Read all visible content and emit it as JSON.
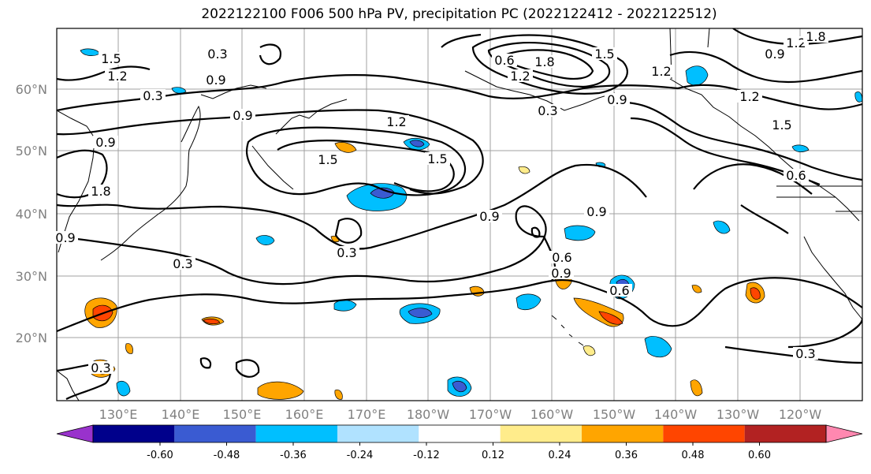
{
  "title": "2022122100 F006 500 hPa PV, precipitation PC (2022122412 - 2022122512)",
  "latitude_labels": [
    "60°N",
    "50°N",
    "40°N",
    "30°N",
    "20°N"
  ],
  "longitude_labels": [
    "130°E",
    "140°E",
    "150°E",
    "160°E",
    "170°E",
    "180°W",
    "170°W",
    "160°W",
    "150°W",
    "140°W",
    "130°W",
    "120°W"
  ],
  "colorbar": {
    "colors": [
      "#9932cc",
      "#00008b",
      "#3a5bd2",
      "#00bfff",
      "#b0e2ff",
      "#ffffff",
      "#ffec8b",
      "#ffa500",
      "#ff4500",
      "#b22222",
      "#ff88b0"
    ],
    "tick_labels": [
      "-0.60",
      "-0.48",
      "-0.36",
      "-0.24",
      "-0.12",
      "0.12",
      "0.24",
      "0.36",
      "0.48",
      "0.60"
    ]
  },
  "contour_labels": [
    "1.5",
    "1.2",
    "0.3",
    "0.9",
    "0.3",
    "0.9",
    "1.2",
    "1.5",
    "1.5",
    "0.9",
    "1.8",
    "0.3",
    "0.9",
    "0.3",
    "0.9",
    "0.6",
    "0.9",
    "0.6",
    "0.3",
    "0.9",
    "1.2",
    "1.5",
    "1.8",
    "0.6",
    "1.2",
    "0.3",
    "1.5",
    "1.2",
    "0.9",
    "0.6",
    "0.3",
    "1.2",
    "1.8",
    "0.9"
  ]
}
